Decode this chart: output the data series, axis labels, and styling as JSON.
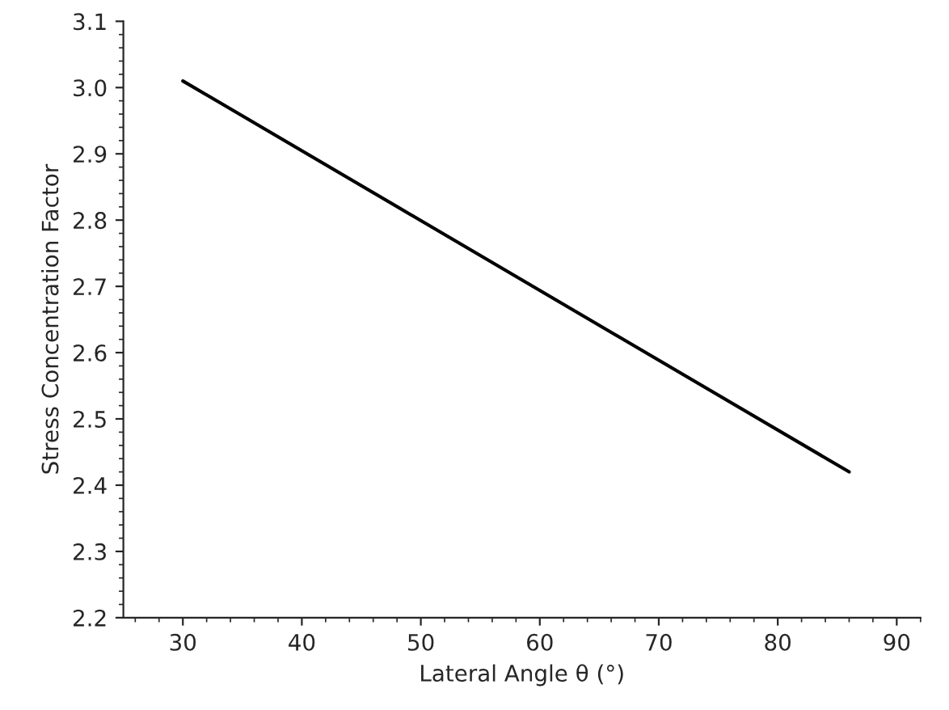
{
  "chart_data": {
    "type": "line",
    "xlabel": "Lateral Angle θ (°)",
    "ylabel": "Stress Concentration Factor",
    "x": [
      30,
      86
    ],
    "series": [
      {
        "color": "#000000",
        "values": [
          3.01,
          2.42
        ]
      }
    ],
    "xlim": [
      25,
      92
    ],
    "xticks": [
      30,
      40,
      50,
      60,
      70,
      80,
      90
    ],
    "ylim": [
      2.2,
      3.1
    ],
    "yticks": [
      2.2,
      2.3,
      2.4,
      2.5,
      2.6,
      2.7,
      2.8,
      2.9,
      {
        "value": 3,
        "label": "3.0"
      },
      3.1
    ],
    "grid": false,
    "legend": false,
    "marker": "none",
    "line_style": "solid"
  }
}
